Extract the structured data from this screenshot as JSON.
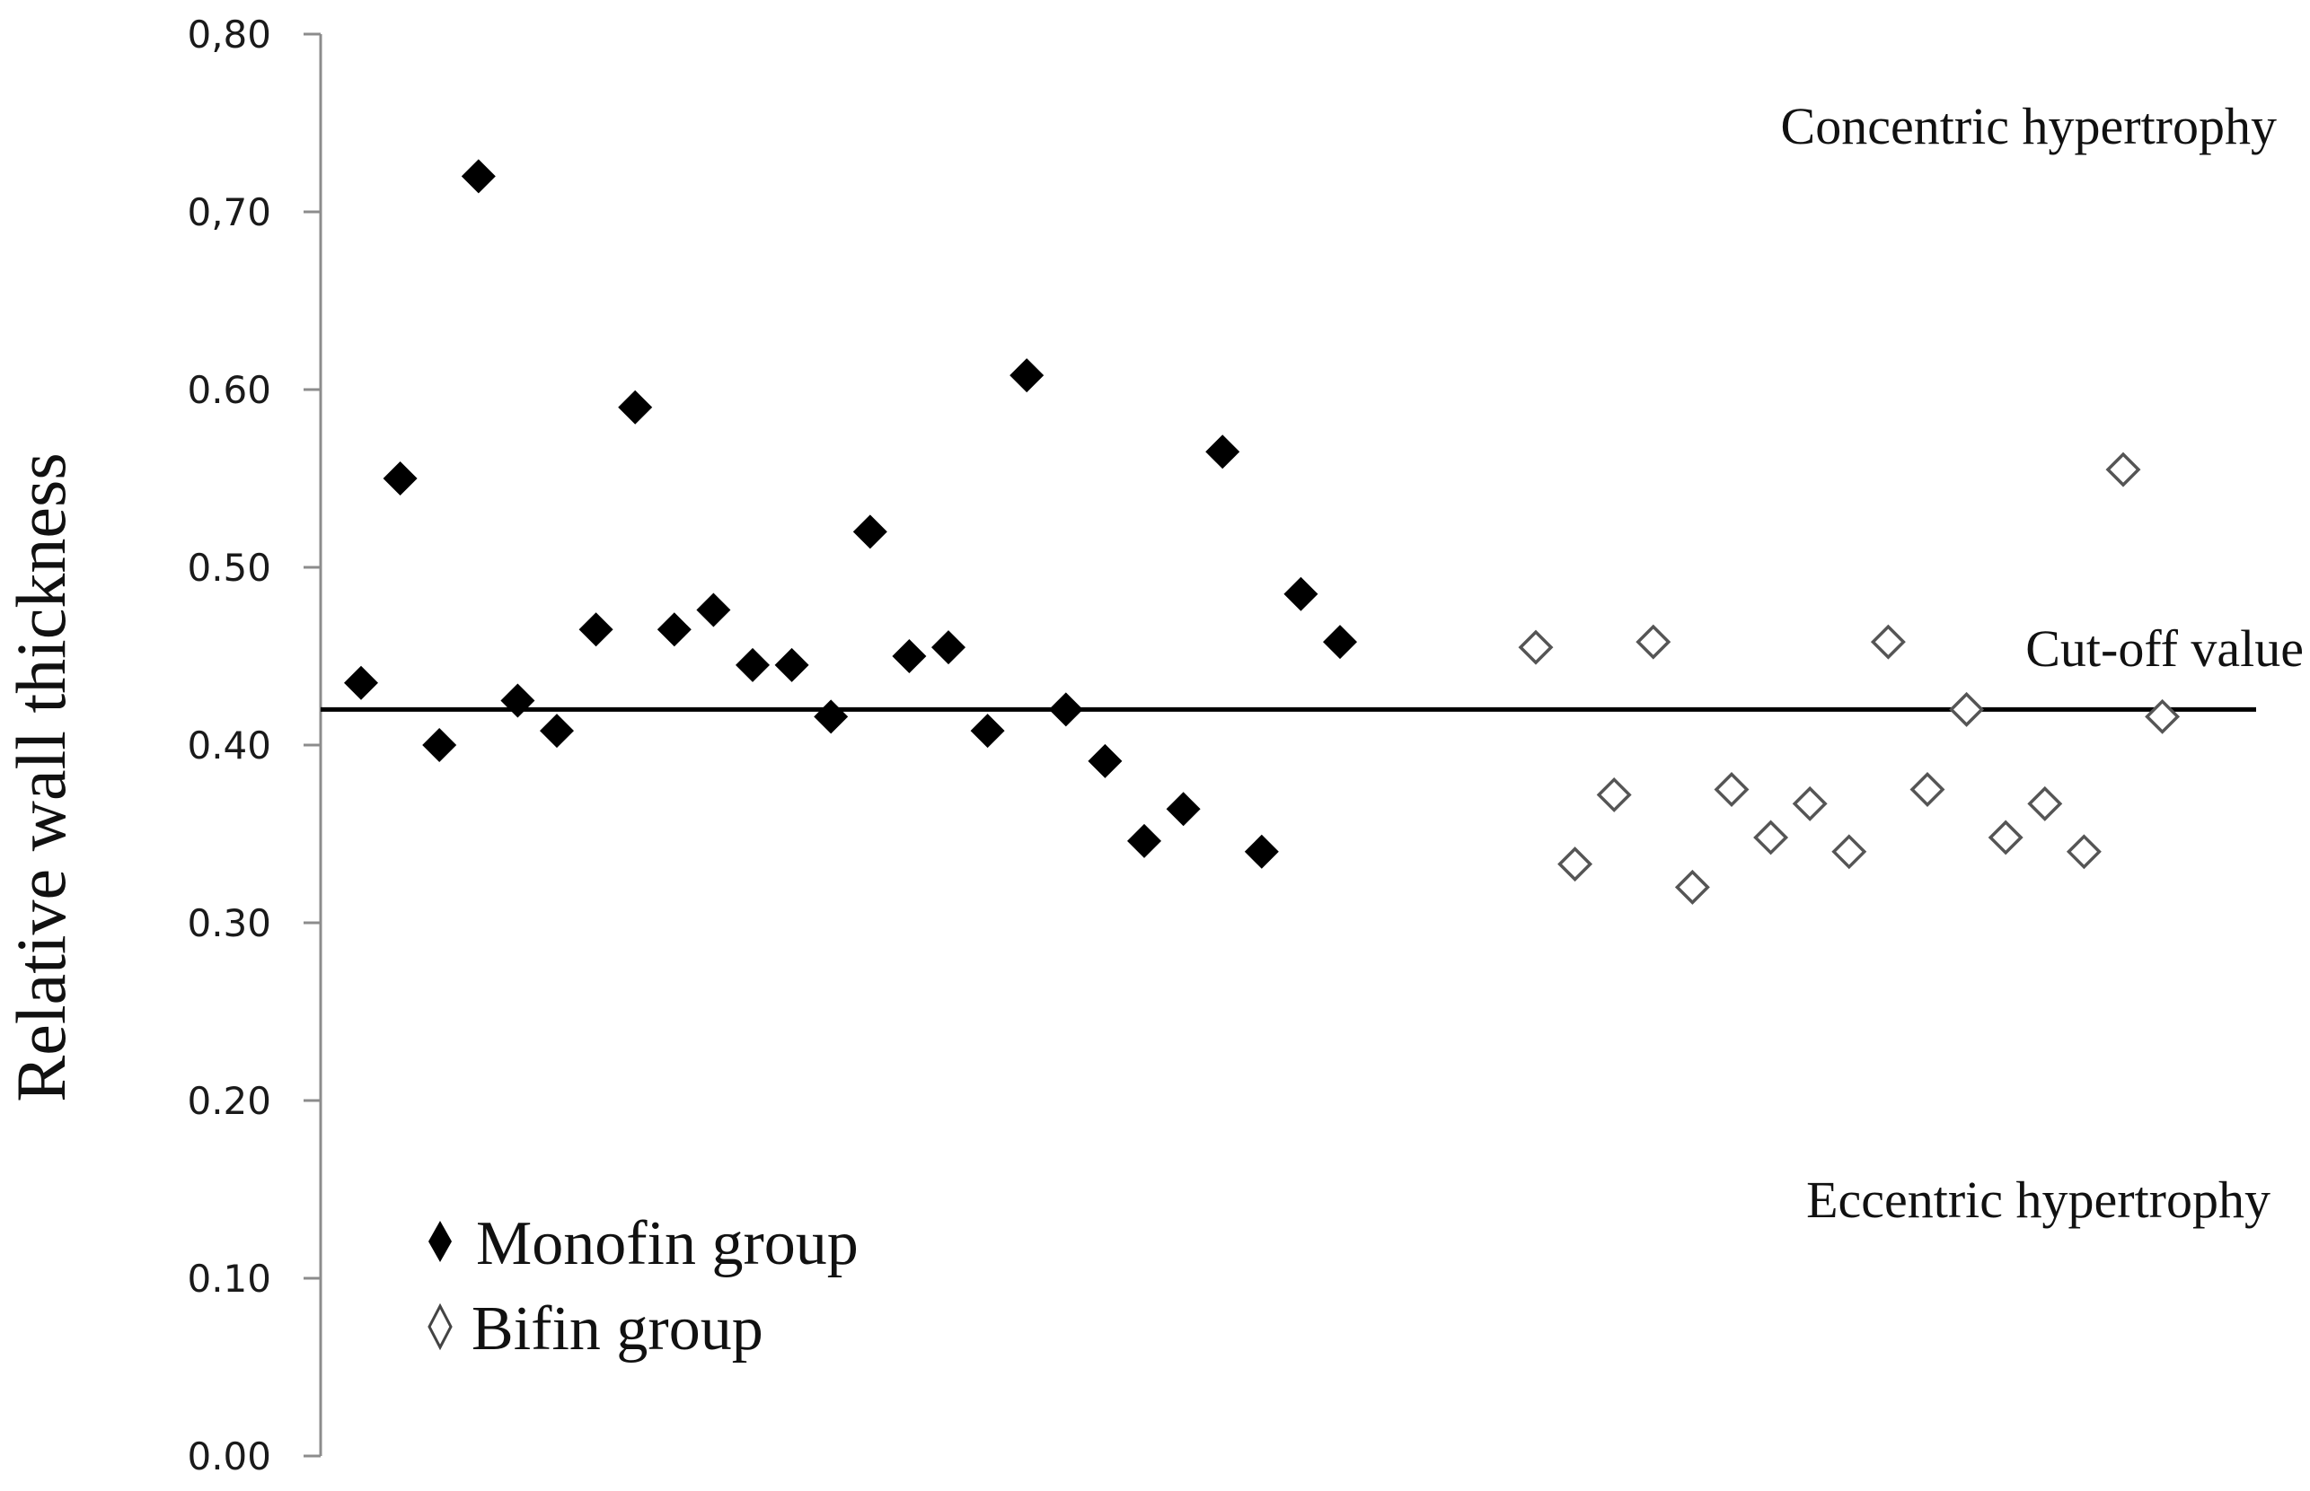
{
  "chart_data": {
    "type": "scatter",
    "title": "",
    "xlabel": "",
    "ylabel": "Relative wall thickness",
    "ylim": [
      0,
      0.8
    ],
    "y_ticks": [
      "0.00",
      "0.10",
      "0.20",
      "0.30",
      "0.40",
      "0.50",
      "0.60",
      "0,70",
      "0,80"
    ],
    "y_tick_values": [
      0,
      0.1,
      0.2,
      0.3,
      0.4,
      0.5,
      0.6,
      0.7,
      0.8
    ],
    "grid": false,
    "legend_position": "bottom-left",
    "series": [
      {
        "name": "Monofin group",
        "marker": "filled-diamond",
        "color": "#000000",
        "x": [
          1,
          2,
          3,
          4,
          5,
          6,
          7,
          8,
          9,
          10,
          11,
          12,
          13,
          14,
          15,
          16,
          17,
          18,
          19,
          20,
          21,
          22,
          23,
          24,
          25,
          26
        ],
        "values": [
          0.435,
          0.55,
          0.4,
          0.72,
          0.425,
          0.408,
          0.465,
          0.59,
          0.465,
          0.476,
          0.445,
          0.445,
          0.416,
          0.52,
          0.45,
          0.455,
          0.408,
          0.608,
          0.42,
          0.391,
          0.346,
          0.364,
          0.565,
          0.34,
          0.485,
          0.458
        ]
      },
      {
        "name": "Bifin group",
        "marker": "open-diamond",
        "color": "#555555",
        "x": [
          31,
          32,
          33,
          34,
          35,
          36,
          37,
          38,
          39,
          40,
          41,
          42,
          43,
          44,
          45,
          46,
          47
        ],
        "values": [
          0.455,
          0.333,
          0.372,
          0.458,
          0.32,
          0.375,
          0.348,
          0.367,
          0.34,
          0.458,
          0.375,
          0.42,
          0.348,
          0.367,
          0.34,
          0.555,
          0.416
        ]
      }
    ],
    "cutoff": {
      "label": "Cut-off value",
      "value": 0.42
    },
    "annotations": {
      "upper": "Concentric hypertrophy",
      "lower": "Eccentric hypertrophy"
    }
  }
}
